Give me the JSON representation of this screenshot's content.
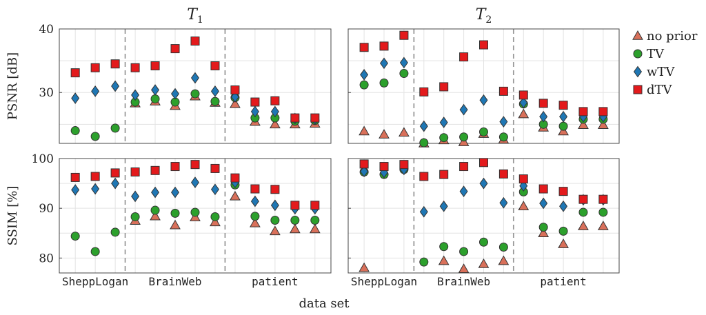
{
  "chart_data": {
    "type": "scatter",
    "xlabel": "data set",
    "groups": [
      "SheppLogan",
      "BrainWeb",
      "patient"
    ],
    "legend": {
      "placement": "right",
      "series": [
        {
          "name": "no prior",
          "marker": "triangle",
          "color": "#d9705a"
        },
        {
          "name": "TV",
          "marker": "circle",
          "color": "#2ca02c"
        },
        {
          "name": "wTV",
          "marker": "diamond",
          "color": "#1f77b4"
        },
        {
          "name": "dTV",
          "marker": "square",
          "color": "#e31a1c"
        }
      ]
    },
    "columns": [
      {
        "title_base": "T",
        "title_sub": "1"
      },
      {
        "title_base": "T",
        "title_sub": "2"
      }
    ],
    "rows": [
      {
        "ylabel": "PSNR [dB]",
        "ylim": [
          22,
          40
        ],
        "yticks": [
          30,
          40
        ]
      },
      {
        "ylabel": "SSIM [%]",
        "ylim": [
          77,
          100
        ],
        "yticks": [
          80,
          90,
          100
        ]
      }
    ],
    "x_positions": [
      1,
      2,
      3,
      4,
      5,
      6,
      7,
      8,
      9,
      10,
      11,
      12,
      13
    ],
    "group_ranges": [
      [
        1,
        3
      ],
      [
        4,
        8
      ],
      [
        9,
        13
      ]
    ],
    "group_separators": [
      3.5,
      8.5
    ],
    "xlim": [
      0.2,
      13.8
    ],
    "grid": true,
    "panels": [
      {
        "row": 0,
        "col": 0,
        "series": [
          {
            "name": "no prior",
            "values": [
              null,
              null,
              null,
              28.3,
              28.6,
              27.9,
              29.4,
              28.4,
              28.2,
              25.4,
              25.0,
              25.0,
              25.1
            ]
          },
          {
            "name": "TV",
            "values": [
              24.0,
              23.1,
              24.4,
              28.5,
              29.0,
              28.5,
              29.8,
              28.6,
              29.2,
              26.0,
              26.0,
              25.5,
              25.6
            ]
          },
          {
            "name": "wTV",
            "values": [
              29.1,
              30.2,
              31.0,
              29.6,
              30.4,
              29.8,
              32.3,
              30.2,
              29.3,
              27.0,
              27.0,
              25.9,
              25.8
            ]
          },
          {
            "name": "dTV",
            "values": [
              33.1,
              33.9,
              34.5,
              33.9,
              34.2,
              36.9,
              38.1,
              34.2,
              30.4,
              28.5,
              28.7,
              26.0,
              26.0
            ]
          }
        ]
      },
      {
        "row": 0,
        "col": 1,
        "series": [
          {
            "name": "no prior",
            "values": [
              23.9,
              23.4,
              23.7,
              22.0,
              22.5,
              22.2,
              23.5,
              22.6,
              26.6,
              24.5,
              23.9,
              24.9,
              24.9
            ]
          },
          {
            "name": "TV",
            "values": [
              31.2,
              31.5,
              33.0,
              22.1,
              22.9,
              23.0,
              23.8,
              23.0,
              28.2,
              25.0,
              24.7,
              25.8,
              25.8
            ]
          },
          {
            "name": "wTV",
            "values": [
              32.8,
              34.6,
              34.7,
              24.7,
              25.3,
              27.3,
              28.8,
              25.4,
              28.4,
              26.2,
              26.2,
              26.2,
              26.2
            ]
          },
          {
            "name": "dTV",
            "values": [
              37.1,
              37.3,
              39.0,
              30.1,
              30.9,
              35.6,
              37.5,
              30.2,
              29.6,
              28.3,
              28.0,
              27.0,
              27.0
            ]
          }
        ]
      },
      {
        "row": 1,
        "col": 0,
        "series": [
          {
            "name": "no prior",
            "values": [
              null,
              null,
              null,
              87.5,
              88.4,
              86.6,
              88.2,
              87.2,
              92.4,
              87.0,
              85.4,
              85.8,
              85.8
            ]
          },
          {
            "name": "TV",
            "values": [
              84.4,
              81.3,
              85.2,
              88.3,
              89.6,
              89.0,
              89.2,
              88.3,
              94.7,
              88.4,
              87.6,
              87.6,
              87.6
            ]
          },
          {
            "name": "wTV",
            "values": [
              93.7,
              93.9,
              95.0,
              92.4,
              93.2,
              93.2,
              95.2,
              93.8,
              95.2,
              91.4,
              90.6,
              89.9,
              89.9
            ]
          },
          {
            "name": "dTV",
            "values": [
              96.2,
              96.4,
              97.1,
              97.3,
              97.6,
              98.4,
              98.8,
              98.0,
              96.1,
              93.9,
              93.8,
              90.6,
              90.6
            ]
          }
        ]
      },
      {
        "row": 1,
        "col": 1,
        "series": [
          {
            "name": "no prior",
            "values": [
              78.0,
              null,
              null,
              null,
              79.4,
              77.8,
              78.8,
              79.4,
              90.4,
              85.0,
              82.8,
              86.4,
              86.4
            ]
          },
          {
            "name": "TV",
            "values": [
              97.3,
              96.8,
              97.8,
              79.2,
              82.3,
              81.3,
              83.2,
              82.2,
              93.3,
              86.2,
              85.4,
              89.2,
              89.2
            ]
          },
          {
            "name": "wTV",
            "values": [
              97.4,
              97.2,
              97.8,
              89.3,
              90.4,
              93.4,
              95.0,
              91.1,
              94.5,
              91.0,
              90.4,
              91.7,
              91.7
            ]
          },
          {
            "name": "dTV",
            "values": [
              98.9,
              98.4,
              98.8,
              96.4,
              96.8,
              98.4,
              99.2,
              96.9,
              95.9,
              93.9,
              93.4,
              91.8,
              91.8
            ]
          }
        ]
      }
    ]
  }
}
